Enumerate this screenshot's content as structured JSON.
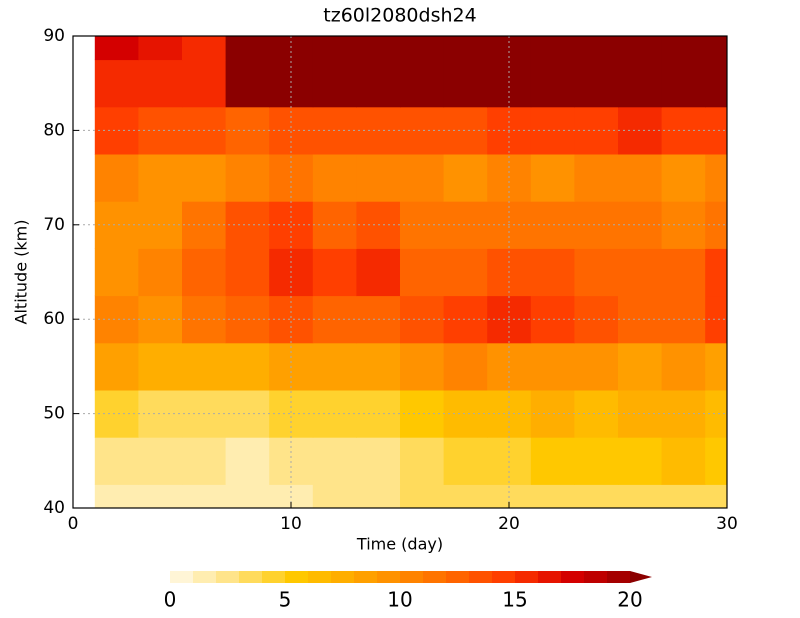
{
  "chart_data": {
    "type": "contour",
    "title": "tz60l2080dsh24",
    "x_label": "Time (day)",
    "y_label": "Altitude (km)",
    "x": [
      0,
      2,
      4,
      6,
      8,
      10,
      12,
      14,
      16,
      18,
      20,
      22,
      24,
      26,
      28,
      30
    ],
    "y": [
      40,
      45,
      50,
      55,
      60,
      65,
      70,
      75,
      80,
      85,
      90
    ],
    "z": [
      [
        null,
        1,
        1,
        1,
        1,
        1,
        2,
        2,
        3,
        3,
        3,
        3,
        3,
        3,
        3,
        3
      ],
      [
        null,
        2,
        2,
        2,
        1,
        2,
        2,
        2,
        3,
        4,
        4,
        5,
        5,
        5,
        6,
        5
      ],
      [
        null,
        4,
        3,
        3,
        3,
        4,
        4,
        4,
        5,
        6,
        6,
        7,
        6,
        7,
        7,
        6
      ],
      [
        null,
        8,
        7,
        7,
        7,
        8,
        8,
        8,
        9,
        10,
        9,
        9,
        9,
        8,
        9,
        8
      ],
      [
        null,
        10,
        9,
        11,
        12,
        13,
        12,
        12,
        13,
        14,
        15,
        14,
        13,
        12,
        12,
        14
      ],
      [
        null,
        9,
        10,
        12,
        13,
        15,
        14,
        15,
        12,
        12,
        13,
        13,
        12,
        12,
        12,
        14
      ],
      [
        null,
        9,
        9,
        11,
        13,
        14,
        12,
        13,
        11,
        11,
        11,
        11,
        11,
        11,
        10,
        11
      ],
      [
        null,
        10,
        9,
        9,
        10,
        11,
        10,
        10,
        10,
        9,
        10,
        9,
        10,
        10,
        9,
        10
      ],
      [
        null,
        14,
        13,
        13,
        12,
        13,
        13,
        13,
        13,
        13,
        14,
        14,
        14,
        15,
        14,
        14
      ],
      [
        null,
        15,
        15,
        15,
        20,
        20,
        20,
        20,
        20,
        20,
        20,
        20,
        20,
        20,
        20,
        20
      ],
      [
        null,
        17,
        16,
        15,
        21,
        21,
        21,
        21,
        21,
        21,
        21,
        21,
        21,
        21,
        21,
        21
      ]
    ],
    "xlim": [
      0,
      30
    ],
    "ylim": [
      40,
      90
    ],
    "xticks": [
      0,
      10,
      20,
      30
    ],
    "yticks": [
      40,
      50,
      60,
      70,
      80,
      90
    ],
    "grid": true,
    "colorbar": {
      "levels": [
        0,
        1,
        2,
        3,
        4,
        5,
        6,
        7,
        8,
        9,
        10,
        11,
        12,
        13,
        14,
        15,
        16,
        17,
        18,
        19,
        20
      ],
      "colors": [
        "#fff5d6",
        "#ffedb0",
        "#ffe48a",
        "#ffdb5c",
        "#ffd22e",
        "#ffc800",
        "#ffbb00",
        "#ffae00",
        "#ffa000",
        "#ff9200",
        "#ff8300",
        "#ff7400",
        "#ff6400",
        "#ff5200",
        "#ff3f00",
        "#f52a00",
        "#e61400",
        "#d40000",
        "#be0000",
        "#a50000",
        "#8b0000"
      ],
      "ticks": [
        0,
        5,
        10,
        15,
        20
      ]
    }
  }
}
